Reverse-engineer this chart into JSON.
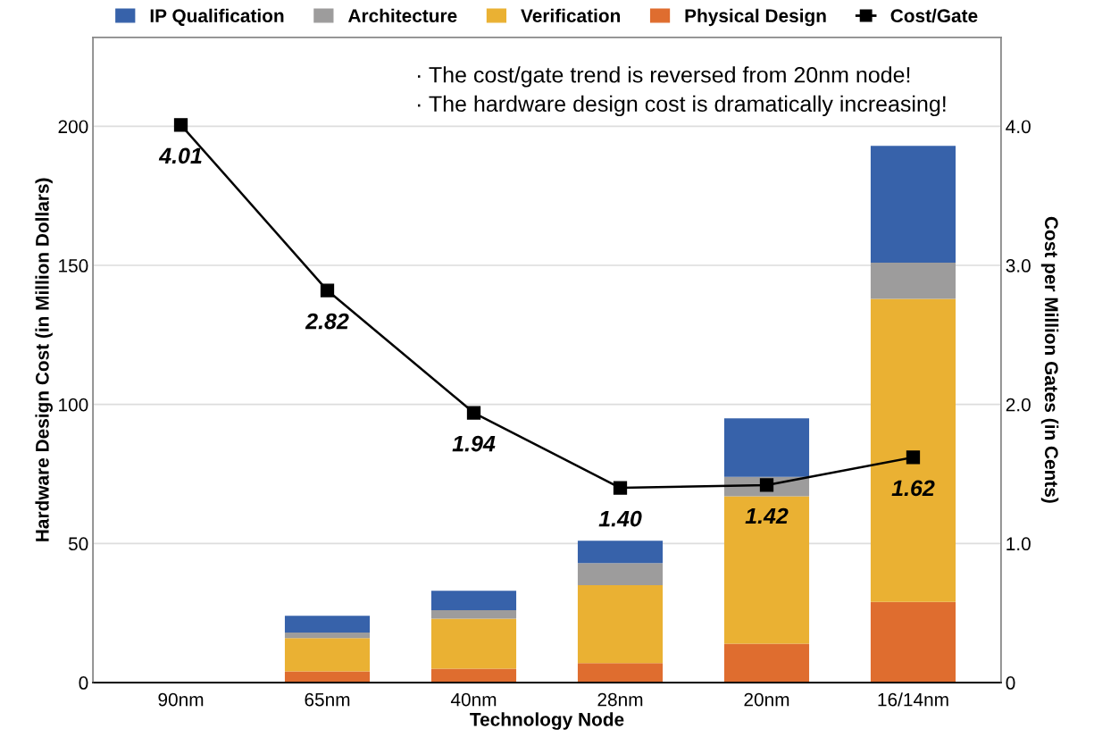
{
  "chart_data": {
    "type": "bar",
    "stacked": true,
    "categories": [
      "90nm",
      "65nm",
      "40nm",
      "28nm",
      "20nm",
      "16/14nm"
    ],
    "xlabel": "Technology Node",
    "ylabel": "Hardware Design Cost (in Million Dollars)",
    "y2label": "Cost per Million Gates (in Cents)",
    "ylim": [
      0,
      232
    ],
    "yticks": [
      0,
      50,
      100,
      150,
      200
    ],
    "y2lim": [
      0,
      4.64
    ],
    "y2ticks": [
      0,
      {
        "value": 1,
        "label": "1.0"
      },
      {
        "value": 2,
        "label": "2.0"
      },
      {
        "value": 3,
        "label": "3.0"
      },
      {
        "value": 4,
        "label": "4.0"
      }
    ],
    "grid": "y",
    "legend": "top",
    "annotations": [
      "· The cost/gate trend is reversed from 20nm node!",
      "· The hardware design cost is dramatically increasing!"
    ],
    "series": [
      {
        "name": "Physical Design",
        "color": "#df6d2f",
        "values": [
          null,
          4,
          5,
          7,
          14,
          29
        ]
      },
      {
        "name": "Verification",
        "color": "#eab133",
        "values": [
          null,
          12,
          18,
          28,
          53,
          109
        ]
      },
      {
        "name": "Architecture",
        "color": "#9d9c9c",
        "values": [
          null,
          2,
          3,
          8,
          7,
          13
        ]
      },
      {
        "name": "IP Qualification",
        "color": "#3762aa",
        "values": [
          null,
          6,
          7,
          8,
          21,
          42
        ]
      },
      {
        "name": "Cost/Gate",
        "type": "line",
        "axis": "y2",
        "color": "#000000",
        "marker": "square",
        "values": [
          4.01,
          2.82,
          1.94,
          1.4,
          1.42,
          1.62
        ],
        "value_labels": [
          "4.01",
          "2.82",
          "1.94",
          "1.40",
          "1.42",
          "1.62"
        ]
      }
    ]
  }
}
